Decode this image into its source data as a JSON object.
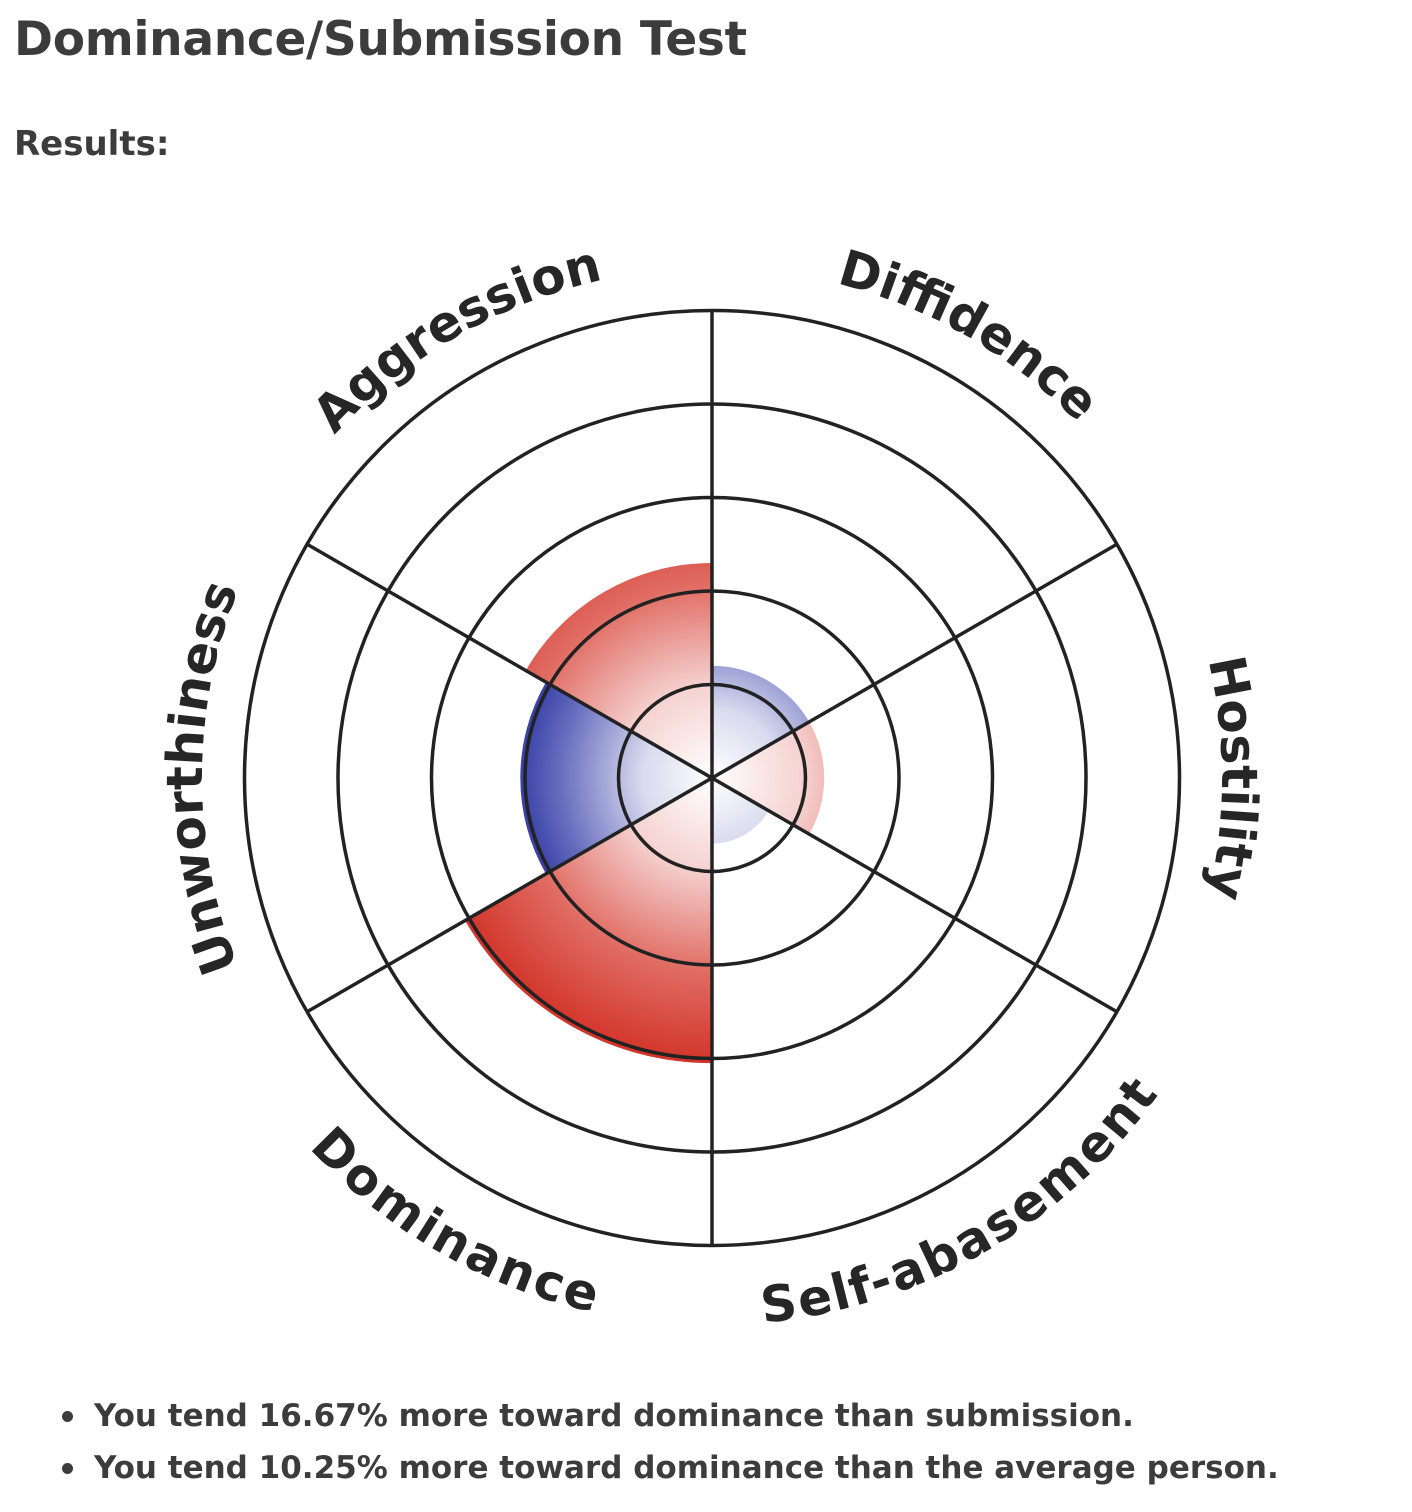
{
  "title": "Dominance/Submission Test",
  "results_label": "Results:",
  "chart_data": {
    "type": "polar-area",
    "rings": 5,
    "max_value": 5,
    "categories": [
      "Aggression",
      "Diffidence",
      "Hostility",
      "Self-abasement",
      "Dominance",
      "Unworthiness"
    ],
    "values": [
      2.3,
      1.2,
      1.2,
      0.7,
      3.05,
      2.05
    ],
    "group": [
      "dominance",
      "submission",
      "dominance",
      "submission",
      "dominance",
      "submission"
    ],
    "colors": {
      "dominance": "#d02c21",
      "submission": "#2e37a3"
    }
  },
  "summary": [
    "You tend 16.67% more toward dominance than submission.",
    "You tend 10.25% more toward dominance than the average person."
  ]
}
